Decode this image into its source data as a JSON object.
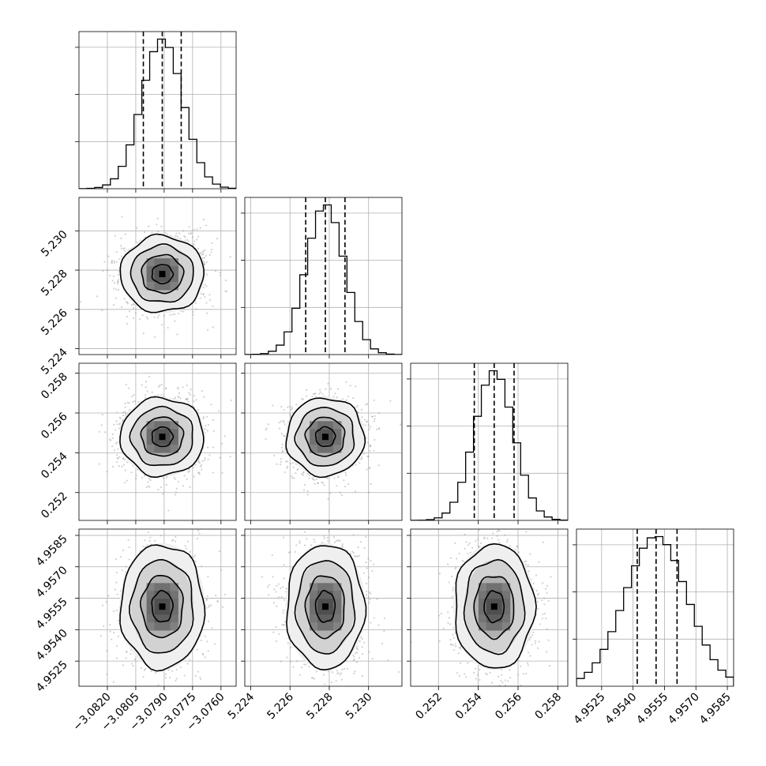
{
  "chart_data": {
    "type": "corner",
    "params": [
      {
        "median": -3.0791,
        "sigma": 0.00108,
        "range": [
          -3.0835,
          -3.0752
        ],
        "ticks": [
          -3.082,
          -3.0805,
          -3.079,
          -3.0775,
          -3.076
        ],
        "tick_labels": [
          "−3.0820",
          "−3.0805",
          "−3.0790",
          "−3.0775",
          "−3.0760"
        ],
        "quantiles": [
          -3.0801,
          -3.0791,
          -3.0781
        ]
      },
      {
        "median": 5.2278,
        "sigma": 0.00097,
        "range": [
          5.2237,
          5.2317
        ],
        "ticks": [
          5.224,
          5.226,
          5.228,
          5.23
        ],
        "tick_labels": [
          "5.224",
          "5.226",
          "5.228",
          "5.230"
        ],
        "quantiles": [
          5.2268,
          5.2278,
          5.2288
        ]
      },
      {
        "median": 0.2548,
        "sigma": 0.00098,
        "range": [
          0.2506,
          0.2585
        ],
        "ticks": [
          0.252,
          0.254,
          0.256,
          0.258
        ],
        "tick_labels": [
          "0.252",
          "0.254",
          "0.256",
          "0.258"
        ],
        "quantiles": [
          0.2538,
          0.2548,
          0.2558
        ]
      },
      {
        "median": 4.9551,
        "sigma": 0.00148,
        "range": [
          4.9513,
          4.9588
        ],
        "ticks": [
          4.9525,
          4.954,
          4.9555,
          4.957,
          4.9585
        ],
        "tick_labels": [
          "4.9525",
          "4.9540",
          "4.9555",
          "4.9570",
          "4.9585"
        ],
        "quantiles": [
          4.9542,
          4.9551,
          4.9561
        ]
      }
    ],
    "histogram_bins": 20,
    "contour_levels_sigma": [
      0.5,
      1.0,
      1.5,
      2.0
    ],
    "grid": true,
    "colors": {
      "line": "#000000",
      "grid": "#b0b0b0",
      "points": "#9a9a9a"
    }
  }
}
